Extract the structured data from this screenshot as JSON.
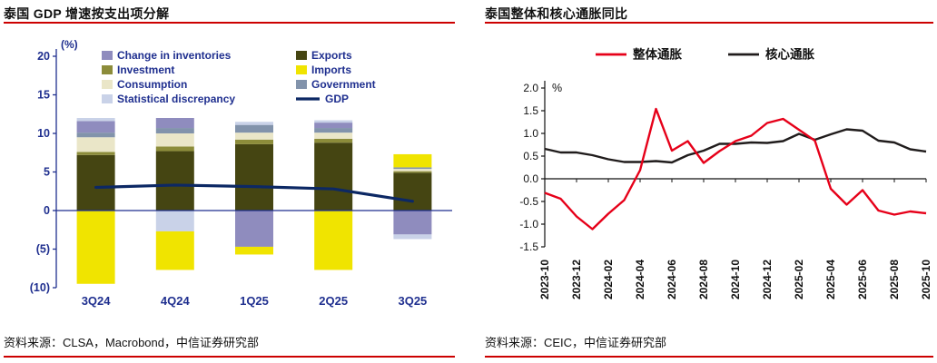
{
  "page": {
    "bg": "#ffffff",
    "rule_color": "#cc0000",
    "navy": "#1f2f8f",
    "left": {
      "title": "泰国 GDP 增速按支出项分解",
      "source": "资料来源：CLSA，Macrobond，中信证券研究部",
      "unit_label": "(%)"
    },
    "right": {
      "title": "泰国整体和核心通胀同比",
      "source": "资料来源：CEIC，中信证券研究部",
      "unit_label": "%"
    }
  },
  "chart_data": [
    {
      "type": "bar",
      "stacked": true,
      "title": "泰国 GDP 增速按支出项分解",
      "ylabel": "(%)",
      "ylim": [
        -10,
        20
      ],
      "ytick_values": [
        20,
        15,
        10,
        5,
        0,
        -5,
        -10
      ],
      "ytick_labels": [
        "20",
        "15",
        "10",
        "5",
        "0",
        "(5)",
        "(10)"
      ],
      "grid": false,
      "legend_position": "top-inside",
      "categories": [
        "3Q24",
        "4Q24",
        "1Q25",
        "2Q25",
        "3Q25"
      ],
      "series": [
        {
          "name": "Change in inventories",
          "color": "#8f8cbe",
          "values": [
            1.5,
            1.3,
            -4.7,
            0.7,
            -3.1
          ]
        },
        {
          "name": "Investment",
          "color": "#8c8c3a",
          "values": [
            0.4,
            0.6,
            0.6,
            0.5,
            0.2
          ]
        },
        {
          "name": "Consumption",
          "color": "#eae6c8",
          "values": [
            1.9,
            1.7,
            0.9,
            0.8,
            0.3
          ]
        },
        {
          "name": "Statistical discrepancy",
          "color": "#c9d2e8",
          "values": [
            0.4,
            -2.7,
            0.4,
            0.3,
            -0.6
          ]
        },
        {
          "name": "Exports",
          "color": "#454512",
          "values": [
            7.2,
            7.7,
            8.6,
            8.8,
            4.9
          ]
        },
        {
          "name": "Imports",
          "color": "#f0e400",
          "values": [
            -9.5,
            -5.0,
            -1.0,
            -7.7,
            1.7
          ]
        },
        {
          "name": "Government",
          "color": "#8293ab",
          "values": [
            0.6,
            0.7,
            1.0,
            0.6,
            0.2
          ]
        }
      ],
      "stack_order": [
        "Exports",
        "Investment",
        "Consumption",
        "Government",
        "Change in inventories",
        "Statistical discrepancy",
        "Imports"
      ],
      "gdp_line": {
        "name": "GDP",
        "color": "#0c2864",
        "values": [
          3.0,
          3.3,
          3.1,
          2.8,
          1.2
        ]
      },
      "legend_columns": [
        [
          "Change in inventories",
          "Investment",
          "Consumption",
          "Statistical discrepancy"
        ],
        [
          "Exports",
          "Imports",
          "Government",
          "GDP"
        ]
      ]
    },
    {
      "type": "line",
      "title": "泰国整体和核心通胀同比",
      "ylabel": "%",
      "ylim": [
        -1.5,
        2.0
      ],
      "ytick_values": [
        2.0,
        1.5,
        1.0,
        0.5,
        0.0,
        -0.5,
        -1.0,
        -1.5
      ],
      "ytick_labels": [
        "2.0",
        "1.5",
        "1.0",
        "0.5",
        "0.0",
        "-0.5",
        "-1.0",
        "-1.5"
      ],
      "grid": false,
      "legend_position": "top",
      "x": [
        "2023-10",
        "2023-11",
        "2023-12",
        "2024-01",
        "2024-02",
        "2024-03",
        "2024-04",
        "2024-05",
        "2024-06",
        "2024-07",
        "2024-08",
        "2024-09",
        "2024-10",
        "2024-11",
        "2024-12",
        "2025-01",
        "2025-02",
        "2025-03",
        "2025-04",
        "2025-05",
        "2025-06",
        "2025-07",
        "2025-08",
        "2025-09",
        "2025-10"
      ],
      "xtick_every": 2,
      "series": [
        {
          "name": "整体通胀",
          "color": "#e60019",
          "values": [
            -0.31,
            -0.44,
            -0.83,
            -1.11,
            -0.77,
            -0.47,
            0.19,
            1.54,
            0.62,
            0.83,
            0.35,
            0.61,
            0.83,
            0.95,
            1.23,
            1.32,
            1.08,
            0.84,
            -0.22,
            -0.57,
            -0.25,
            -0.7,
            -0.79,
            -0.72,
            -0.76
          ]
        },
        {
          "name": "核心通胀",
          "color": "#201c1c",
          "values": [
            0.66,
            0.58,
            0.58,
            0.52,
            0.43,
            0.37,
            0.37,
            0.39,
            0.36,
            0.52,
            0.62,
            0.77,
            0.77,
            0.8,
            0.79,
            0.83,
            0.99,
            0.86,
            0.98,
            1.09,
            1.06,
            0.84,
            0.8,
            0.65,
            0.6
          ]
        }
      ]
    }
  ]
}
